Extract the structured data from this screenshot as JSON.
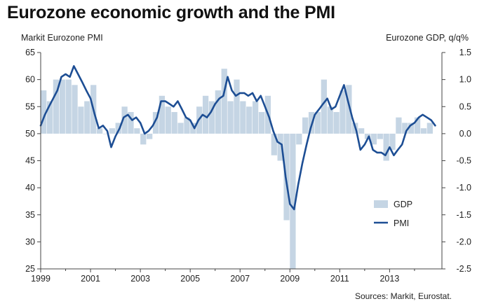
{
  "chart_data": {
    "type": "bar+line",
    "title": "Eurozone economic growth and the PMI",
    "left_axis_label": "Markit Eurozone PMI",
    "right_axis_label": "Eurozone GDP, q/q%",
    "source": "Sources: Markit, Eurostat.",
    "left_ylim": [
      25,
      65
    ],
    "left_ticks": [
      65,
      60,
      55,
      50,
      45,
      40,
      35,
      30,
      25
    ],
    "right_ylim": [
      -2.5,
      1.5
    ],
    "right_ticks": [
      "1.5",
      "1.0",
      "0.5",
      "0.0",
      "-0.5",
      "-1.0",
      "-1.5",
      "-2.0",
      "-2.5"
    ],
    "xlim": [
      1999,
      2015.1
    ],
    "x_ticks": [
      "1999",
      "2001",
      "2003",
      "2005",
      "2007",
      "2009",
      "2011",
      "2013"
    ],
    "legend": {
      "position": "bottom-right",
      "gdp_label": "GDP",
      "pmi_label": "PMI"
    },
    "series": [
      {
        "name": "GDP",
        "kind": "bar",
        "axis": "right",
        "color": "#c5d5e4",
        "x": [
          1999.0,
          1999.25,
          1999.5,
          1999.75,
          2000.0,
          2000.25,
          2000.5,
          2000.75,
          2001.0,
          2001.25,
          2001.5,
          2001.75,
          2002.0,
          2002.25,
          2002.5,
          2002.75,
          2003.0,
          2003.25,
          2003.5,
          2003.75,
          2004.0,
          2004.25,
          2004.5,
          2004.75,
          2005.0,
          2005.25,
          2005.5,
          2005.75,
          2006.0,
          2006.25,
          2006.5,
          2006.75,
          2007.0,
          2007.25,
          2007.5,
          2007.75,
          2008.0,
          2008.25,
          2008.5,
          2008.75,
          2009.0,
          2009.25,
          2009.5,
          2009.75,
          2010.0,
          2010.25,
          2010.5,
          2010.75,
          2011.0,
          2011.25,
          2011.5,
          2011.75,
          2012.0,
          2012.25,
          2012.5,
          2012.75,
          2013.0,
          2013.25,
          2013.5,
          2013.75,
          2014.0,
          2014.25,
          2014.5
        ],
        "values": [
          0.8,
          0.6,
          1.0,
          1.0,
          1.0,
          0.9,
          0.5,
          0.6,
          0.9,
          0.1,
          0.0,
          0.1,
          0.2,
          0.5,
          0.4,
          0.1,
          -0.2,
          -0.1,
          0.4,
          0.7,
          0.5,
          0.4,
          0.2,
          0.3,
          0.2,
          0.5,
          0.7,
          0.6,
          0.8,
          1.2,
          0.6,
          1.0,
          0.6,
          0.5,
          0.6,
          0.4,
          0.7,
          -0.4,
          -0.5,
          -1.6,
          -2.5,
          -0.2,
          0.3,
          0.4,
          0.4,
          1.0,
          0.5,
          0.4,
          0.8,
          0.9,
          0.2,
          0.1,
          -0.1,
          -0.2,
          -0.1,
          -0.5,
          -0.3,
          0.3,
          0.2,
          0.2,
          0.3,
          0.1,
          0.2
        ]
      },
      {
        "name": "PMI",
        "kind": "line",
        "axis": "left",
        "color": "#1d4e94",
        "x": [
          1999.0,
          1999.17,
          1999.33,
          1999.5,
          1999.67,
          1999.83,
          2000.0,
          2000.17,
          2000.33,
          2000.5,
          2000.67,
          2000.83,
          2001.0,
          2001.17,
          2001.33,
          2001.5,
          2001.67,
          2001.83,
          2002.0,
          2002.17,
          2002.33,
          2002.5,
          2002.67,
          2002.83,
          2003.0,
          2003.17,
          2003.33,
          2003.5,
          2003.67,
          2003.83,
          2004.0,
          2004.17,
          2004.33,
          2004.5,
          2004.67,
          2004.83,
          2005.0,
          2005.17,
          2005.33,
          2005.5,
          2005.67,
          2005.83,
          2006.0,
          2006.17,
          2006.33,
          2006.5,
          2006.67,
          2006.83,
          2007.0,
          2007.17,
          2007.33,
          2007.5,
          2007.67,
          2007.83,
          2008.0,
          2008.17,
          2008.33,
          2008.5,
          2008.67,
          2008.83,
          2009.0,
          2009.17,
          2009.33,
          2009.5,
          2009.67,
          2009.83,
          2010.0,
          2010.17,
          2010.33,
          2010.5,
          2010.67,
          2010.83,
          2011.0,
          2011.17,
          2011.33,
          2011.5,
          2011.67,
          2011.83,
          2012.0,
          2012.17,
          2012.33,
          2012.5,
          2012.67,
          2012.83,
          2013.0,
          2013.17,
          2013.33,
          2013.5,
          2013.67,
          2013.83,
          2014.0,
          2014.17,
          2014.33,
          2014.5,
          2014.67,
          2014.83
        ],
        "values": [
          51.5,
          53.5,
          55.0,
          56.5,
          58.0,
          60.5,
          61.0,
          60.5,
          62.5,
          61.0,
          59.5,
          58.0,
          56.5,
          53.5,
          51.0,
          51.5,
          50.5,
          47.5,
          49.5,
          51.0,
          53.0,
          53.5,
          52.5,
          53.0,
          52.0,
          50.0,
          50.5,
          51.5,
          53.0,
          56.0,
          56.0,
          55.5,
          55.0,
          56.0,
          54.5,
          53.0,
          52.5,
          51.0,
          52.5,
          53.5,
          53.0,
          54.0,
          55.5,
          56.5,
          57.0,
          60.5,
          58.0,
          57.0,
          57.5,
          57.5,
          57.0,
          57.5,
          56.0,
          57.0,
          55.0,
          53.0,
          50.5,
          48.5,
          48.0,
          42.0,
          37.0,
          36.0,
          40.5,
          44.5,
          48.0,
          51.0,
          53.5,
          54.5,
          55.5,
          56.5,
          54.5,
          55.0,
          57.0,
          59.0,
          56.0,
          53.0,
          50.5,
          47.0,
          48.0,
          49.5,
          47.0,
          46.5,
          46.5,
          46.0,
          47.5,
          46.0,
          47.0,
          48.0,
          50.5,
          51.5,
          52.0,
          53.0,
          53.5,
          53.0,
          52.5,
          51.5
        ]
      }
    ]
  }
}
